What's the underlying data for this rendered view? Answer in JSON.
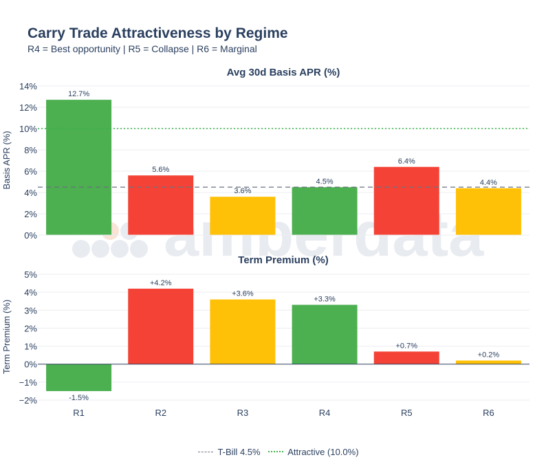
{
  "title": "Carry Trade Attractiveness by Regime",
  "subtitle": "R4 = Best opportunity | R5 = Collapse | R6 = Marginal",
  "watermark": "amberdata",
  "colors": {
    "green": "#4caf50",
    "red": "#f44336",
    "yellow": "#ffc107",
    "text": "#2a3f5f",
    "grid": "#ebedf2",
    "tbill": "#6b7280",
    "attractive": "#3ab34a"
  },
  "legend": {
    "tbill": "T-Bill 4.5%",
    "attractive": "Attractive (10.0%)"
  },
  "chart_data": [
    {
      "type": "bar",
      "title": "Avg 30d Basis APR (%)",
      "ylabel": "Basis APR (%)",
      "xlabel": "",
      "categories": [
        "R1",
        "R2",
        "R3",
        "R4",
        "R5",
        "R6"
      ],
      "values": [
        12.7,
        5.6,
        3.6,
        4.5,
        6.4,
        4.4
      ],
      "labels": [
        "12.7%",
        "5.6%",
        "3.6%",
        "4.5%",
        "6.4%",
        "4.4%"
      ],
      "bar_colors": [
        "green",
        "red",
        "yellow",
        "green",
        "red",
        "yellow"
      ],
      "ylim": [
        0,
        14
      ],
      "yticks": [
        0,
        2,
        4,
        6,
        8,
        10,
        12,
        14
      ],
      "ytick_labels": [
        "0%",
        "2%",
        "4%",
        "6%",
        "8%",
        "10%",
        "12%",
        "14%"
      ],
      "reference_lines": [
        {
          "name": "tbill",
          "value": 4.5,
          "style": "dashed"
        },
        {
          "name": "attractive",
          "value": 10.0,
          "style": "dotted"
        }
      ]
    },
    {
      "type": "bar",
      "title": "Term Premium (%)",
      "ylabel": "Term Premium (%)",
      "xlabel": "",
      "categories": [
        "R1",
        "R2",
        "R3",
        "R4",
        "R5",
        "R6"
      ],
      "values": [
        -1.5,
        4.2,
        3.6,
        3.3,
        0.7,
        0.2
      ],
      "labels": [
        "-1.5%",
        "+4.2%",
        "+3.6%",
        "+3.3%",
        "+0.7%",
        "+0.2%"
      ],
      "bar_colors": [
        "green",
        "red",
        "yellow",
        "green",
        "red",
        "yellow"
      ],
      "ylim": [
        -2,
        5
      ],
      "yticks": [
        -2,
        -1,
        0,
        1,
        2,
        3,
        4,
        5
      ],
      "ytick_labels": [
        "−2%",
        "−1%",
        "0%",
        "1%",
        "2%",
        "3%",
        "4%",
        "5%"
      ]
    }
  ]
}
